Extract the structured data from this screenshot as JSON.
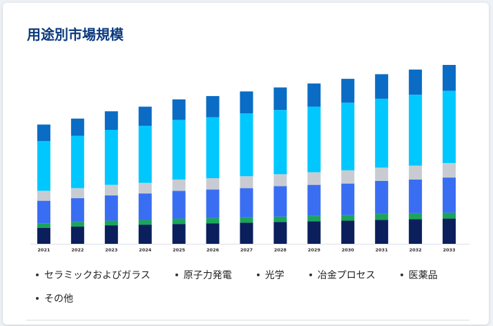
{
  "title": "用途別市場規模",
  "chart_data": {
    "type": "bar",
    "stacked": true,
    "categories": [
      "2021",
      "2022",
      "2023",
      "2024",
      "2025",
      "2026",
      "2027",
      "2028",
      "2029",
      "2030",
      "2031",
      "2032",
      "2033"
    ],
    "series": [
      {
        "name": "セラミックおよびガラス",
        "color": "#0a1f5c",
        "values": [
          24,
          26,
          28,
          29,
          30,
          31,
          32,
          33,
          34,
          35,
          36,
          37,
          38
        ]
      },
      {
        "name": "原子力発電",
        "color": "#1aa65a",
        "values": [
          7,
          7,
          7,
          7,
          8,
          8,
          8,
          8,
          8,
          8,
          9,
          9,
          9
        ]
      },
      {
        "name": "光学",
        "color": "#3a6ef2",
        "values": [
          34,
          36,
          38,
          40,
          42,
          43,
          44,
          46,
          47,
          48,
          50,
          51,
          53
        ]
      },
      {
        "name": "冶金プロセス",
        "color": "#c8ccd2",
        "values": [
          15,
          15,
          16,
          16,
          17,
          17,
          18,
          18,
          19,
          20,
          20,
          21,
          22
        ]
      },
      {
        "name": "医薬品",
        "color": "#00c8ff",
        "values": [
          75,
          79,
          83,
          86,
          90,
          92,
          95,
          97,
          99,
          102,
          104,
          107,
          109
        ]
      },
      {
        "name": "その他",
        "color": "#0a6cc4",
        "values": [
          25,
          26,
          28,
          29,
          31,
          32,
          33,
          34,
          35,
          36,
          37,
          38,
          39
        ]
      }
    ],
    "legend": [
      "セラミックおよびガラス",
      "原子力発電",
      "光学",
      "冶金プロセス",
      "医薬品",
      "その他"
    ],
    "legend_position": "bottom",
    "grid": false
  }
}
